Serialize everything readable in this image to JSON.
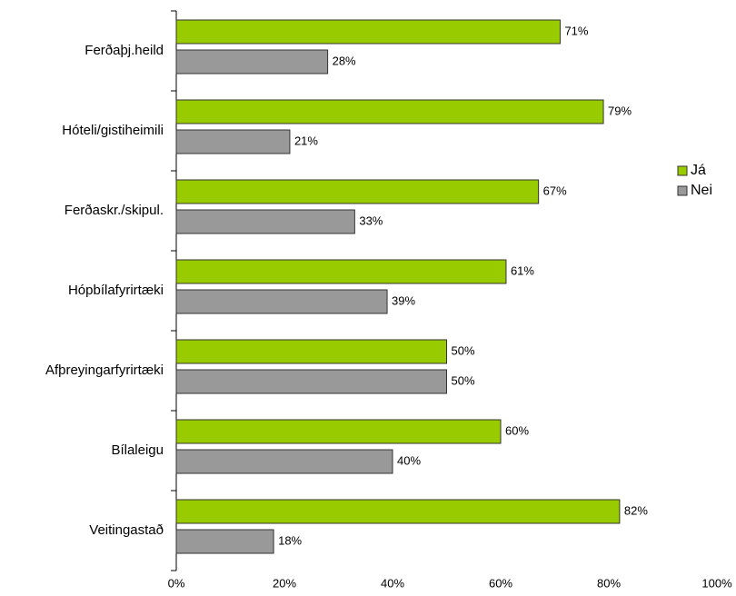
{
  "chart_data": {
    "type": "barh",
    "categories": [
      "Ferðaþj.heild",
      "Hóteli/gistiheimili",
      "Ferðaskr./skipul.",
      "Hópbílafyrirtæki",
      "Afþreyingarfyrirtæki",
      "Bílaleigu",
      "Veitingastað"
    ],
    "series": [
      {
        "name": "Já",
        "color": "#99cc00",
        "values": [
          71,
          79,
          67,
          61,
          50,
          60,
          82
        ],
        "value_labels": [
          "71%",
          "79%",
          "67%",
          "61%",
          "50%",
          "60%",
          "82%"
        ]
      },
      {
        "name": "Nei",
        "color": "#999999",
        "values": [
          28,
          21,
          33,
          39,
          50,
          40,
          18
        ],
        "value_labels": [
          "28%",
          "21%",
          "33%",
          "39%",
          "50%",
          "40%",
          "18%"
        ]
      }
    ],
    "xlim": [
      0,
      100
    ],
    "xticks": [
      {
        "value": 0,
        "label": "0%"
      },
      {
        "value": 20,
        "label": "20%"
      },
      {
        "value": 40,
        "label": "40%"
      },
      {
        "value": 60,
        "label": "60%"
      },
      {
        "value": 80,
        "label": "80%"
      },
      {
        "value": 100,
        "label": "100%"
      }
    ],
    "legend": "right"
  }
}
